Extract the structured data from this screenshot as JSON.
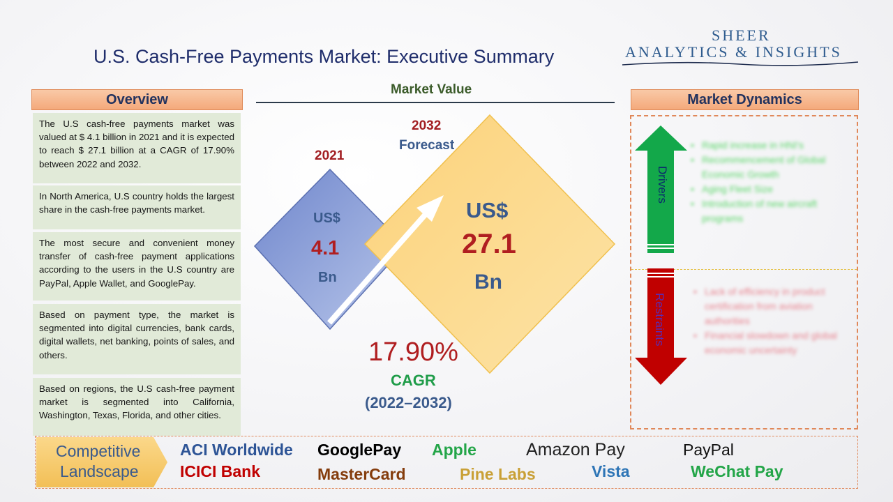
{
  "title": "U.S. Cash-Free Payments Market: Executive Summary",
  "logo": {
    "line1": "SHEER",
    "line2": "ANALYTICS & INSIGHTS"
  },
  "overview": {
    "header": "Overview",
    "paragraphs": [
      "The U.S cash-free payments market was valued at $ 4.1 billion in 2021 and it is expected to reach $ 27.1 billion at a CAGR of 17.90% between 2022 and 2032.",
      "In North America, U.S country holds the largest share in the cash-free payments market.",
      "The most secure and convenient money transfer of cash-free payment applications according to the users in the U.S country are PayPal, Apple Wallet, and GooglePay.",
      "Based on payment type, the market is segmented into digital currencies, bank cards, digital wallets, net banking, points of sales, and others.",
      "Based on regions, the U.S cash-free payment market is segmented into California, Washington, Texas, Florida, and other cities."
    ]
  },
  "market_value": {
    "title": "Market Value",
    "year_2021": "2021",
    "year_2032": "2032",
    "forecast_label": "Forecast",
    "v2021": {
      "currency": "US$",
      "value": "4.1",
      "unit": "Bn"
    },
    "v2032": {
      "currency": "US$",
      "value": "27.1",
      "unit": "Bn"
    },
    "cagr": {
      "value": "17.90%",
      "label": "CAGR",
      "period": "(2022–2032)"
    }
  },
  "dynamics": {
    "header": "Market Dynamics",
    "drivers_label": "Drivers",
    "restraints_label": "Restraints",
    "drivers": [
      "Rapid increase in HNI's",
      "Recommencement of Global Economic Growth",
      "Aging Fleet Size",
      "Introduction of new aircraft programs"
    ],
    "restraints": [
      "Lack of efficiency in product certification from aviation authorities",
      "Financial slowdown and global economic uncertainty"
    ]
  },
  "competitive": {
    "label_line1": "Competitive",
    "label_line2": "Landscape",
    "companies": [
      "ACI Worldwide",
      "GooglePay",
      "Apple",
      "Amazon Pay",
      "PayPal",
      "ICICI Bank",
      "MasterCard",
      "Pine Labs",
      "Vista",
      "WeChat Pay"
    ]
  },
  "colors": {
    "header_fill": "#f4a97b",
    "overview_fill": "#e1ead8",
    "diamond_small": "#7f97d6",
    "diamond_large": "#fcd984",
    "drivers_arrow": "#13a84a",
    "restraints_arrow": "#c00000",
    "value_red": "#b01e20",
    "value_blue": "#3a5a8c"
  }
}
